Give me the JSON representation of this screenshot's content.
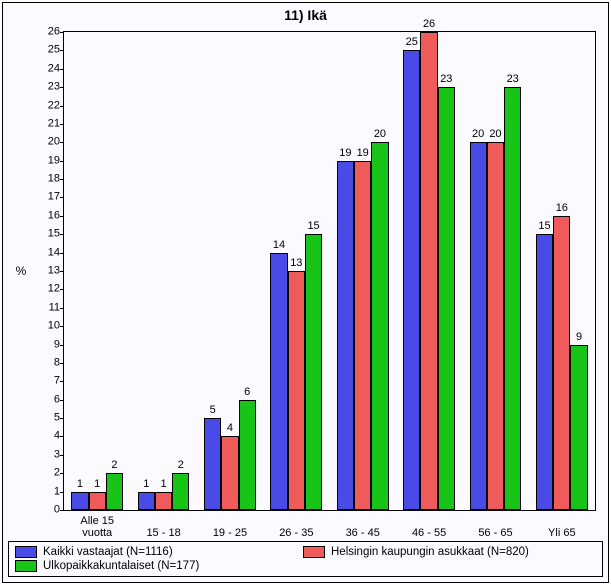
{
  "chart": {
    "type": "bar",
    "title": "11) Ikä",
    "title_fontsize": 14,
    "background_color": "#fafaff",
    "border_color": "#000000",
    "ylabel": "%",
    "ylim": [
      0,
      26
    ],
    "ytick_step": 1,
    "categories": [
      "Alle 15\nvuotta",
      "15 - 18",
      "19 - 25",
      "26 - 35",
      "36 - 45",
      "46 - 55",
      "56 - 65",
      "Yli 65"
    ],
    "series": [
      {
        "name": "Kaikki vastaajat (N=1116)",
        "color": "#4a4ae7",
        "values": [
          1,
          1,
          5,
          14,
          19,
          25,
          20,
          15
        ]
      },
      {
        "name": "Helsingin kaupungin asukkaat (N=820)",
        "color": "#ef5a5a",
        "values": [
          1,
          1,
          4,
          13,
          19,
          26,
          20,
          16
        ]
      },
      {
        "name": "Ulkopaikkakuntalaiset (N=177)",
        "color": "#18c418",
        "values": [
          2,
          2,
          6,
          15,
          20,
          23,
          23,
          9
        ]
      }
    ],
    "label_fontsize": 11,
    "tick_fontsize": 11,
    "bar_border_color": "#000000",
    "group_count": 8,
    "series_count": 3
  }
}
